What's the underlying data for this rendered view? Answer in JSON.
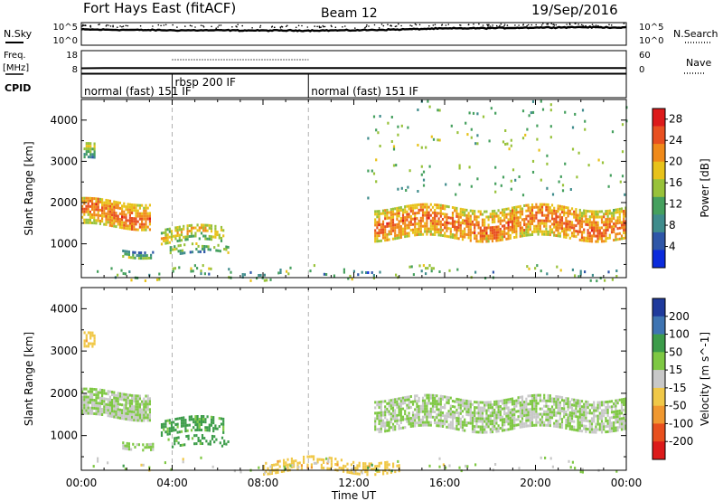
{
  "header": {
    "radar": "Fort Hays East (fitACF)",
    "beam": "Beam 12",
    "date": "19/Sep/2016"
  },
  "labels": {
    "nsky": "N.Sky",
    "nsearch": "N.Search",
    "freq_line1": "Freq.",
    "freq_line2": "[MHz]",
    "nave": "Nave",
    "cpid": "CPID",
    "ticks_noise": [
      "10^5",
      "10^0"
    ],
    "ticks_freq_left": [
      "18",
      "8"
    ],
    "ticks_freq_right": [
      "60",
      "0"
    ]
  },
  "cpid_segments": [
    {
      "label": "normal (fast) 151 IF",
      "start": 0.0
    },
    {
      "label": "rbsp 200 IF",
      "start": 4.0
    },
    {
      "label": "normal (fast) 151 IF",
      "start": 10.0
    }
  ],
  "colors": {
    "power": [
      "#0b2bdc",
      "#2e56a8",
      "#3f8c8c",
      "#45a05e",
      "#98c23a",
      "#e8c21a",
      "#f08a1a",
      "#e85020",
      "#dc1a1a"
    ],
    "velocity": [
      "#1f3a9c",
      "#3e74b2",
      "#3c9c4a",
      "#7ec843",
      "#c8c8c8",
      "#f0c848",
      "#f09830",
      "#e8501e",
      "#dc1a1a"
    ],
    "velocity_dominant": "#c0c0bc",
    "velocity_green": "#7ec843",
    "velocity_orange": "#e8a030"
  },
  "chart_data": [
    {
      "type": "line",
      "title": "N.Sky / N.Search",
      "ylabel": "N.Sky",
      "y2label": "N.Search",
      "ylim": [
        1,
        100000
      ],
      "yscale": "log",
      "xlim": [
        0,
        24
      ],
      "series": [
        {
          "name": "N.Sky",
          "x": [
            0,
            2,
            4,
            6,
            8,
            10,
            12,
            14,
            16,
            18,
            20,
            22,
            24
          ],
          "y": [
            3000,
            2500,
            2000,
            2000,
            1800,
            1800,
            2000,
            3000,
            5000,
            6000,
            8000,
            10000,
            8000
          ]
        },
        {
          "name": "N.Search",
          "x": [
            0,
            4,
            8,
            12,
            16,
            20,
            24
          ],
          "y": [
            20000,
            15000,
            12000,
            15000,
            30000,
            40000,
            30000
          ]
        }
      ]
    },
    {
      "type": "line",
      "title": "Freq. / Nave",
      "ylabel": "Freq. [MHz]",
      "y2label": "Nave",
      "ylim": [
        8,
        18
      ],
      "y2lim": [
        0,
        60
      ],
      "xlim": [
        0,
        24
      ],
      "series": [
        {
          "name": "Freq.",
          "x": [
            0,
            1,
            4,
            8,
            10,
            12,
            16,
            20,
            24
          ],
          "y": [
            10.2,
            10.3,
            10.3,
            10.3,
            10.3,
            10.3,
            10.3,
            10.3,
            10.3
          ]
        },
        {
          "name": "Nave",
          "x": [
            4,
            8,
            10
          ],
          "y": [
            36,
            36,
            36
          ]
        }
      ]
    },
    {
      "type": "heatmap",
      "title": "Power",
      "xlabel": "",
      "ylabel": "Slant Range [km]",
      "colorbar_label": "Power [dB]",
      "colorbar_ticks": [
        4,
        8,
        12,
        16,
        20,
        24,
        28
      ],
      "colorbar_range": [
        0,
        30
      ],
      "xlim": [
        0,
        24
      ],
      "ylim": [
        180,
        4500
      ],
      "yticks": [
        1000,
        2000,
        3000,
        4000
      ],
      "regions": [
        {
          "t0": 0.0,
          "t1": 3.0,
          "r_low": 1450,
          "r_high": 2050,
          "density": 0.85,
          "p_mean": 18,
          "p_spread": 6
        },
        {
          "t0": 0.1,
          "t1": 0.6,
          "r_low": 3050,
          "r_high": 3380,
          "density": 0.7,
          "p_mean": 11,
          "p_spread": 4
        },
        {
          "t0": 1.8,
          "t1": 3.2,
          "r_low": 720,
          "r_high": 900,
          "density": 0.65,
          "p_mean": 11,
          "p_spread": 4
        },
        {
          "t0": 3.5,
          "t1": 6.3,
          "r_low": 1050,
          "r_high": 1400,
          "density": 0.6,
          "p_mean": 14,
          "p_spread": 5
        },
        {
          "t0": 3.8,
          "t1": 6.5,
          "r_low": 750,
          "r_high": 950,
          "density": 0.35,
          "p_mean": 11,
          "p_spread": 4
        },
        {
          "t0": 12.9,
          "t1": 24.0,
          "r_low": 1150,
          "r_high": 1900,
          "density": 0.75,
          "p_mean": 18,
          "p_spread": 6
        },
        {
          "t0": 0.5,
          "t1": 24.0,
          "r_low": 180,
          "r_high": 420,
          "density": 0.1,
          "p_mean": 10,
          "p_spread": 6
        },
        {
          "t0": 12.5,
          "t1": 24.0,
          "r_low": 2100,
          "r_high": 4400,
          "density": 0.025,
          "p_mean": 10,
          "p_spread": 6
        }
      ]
    },
    {
      "type": "heatmap",
      "title": "Velocity",
      "xlabel": "Time UT",
      "ylabel": "Slant Range [km]",
      "colorbar_label": "Velocity [m s^-1]",
      "colorbar_ticks": [
        200,
        100,
        50,
        15,
        -15,
        -50,
        -100,
        -200
      ],
      "colorbar_range": [
        -250,
        250
      ],
      "xlim": [
        0,
        24
      ],
      "ylim": [
        180,
        4500
      ],
      "yticks": [
        1000,
        2000,
        3000,
        4000
      ],
      "xtick_labels": [
        "00:00",
        "04:00",
        "08:00",
        "12:00",
        "16:00",
        "20:00",
        "00:00"
      ],
      "regions": [
        {
          "t0": 0.0,
          "t1": 3.0,
          "r_low": 1450,
          "r_high": 2050,
          "density": 0.85,
          "v_mean": 0,
          "v_spread": 20
        },
        {
          "t0": 0.1,
          "t1": 0.6,
          "r_low": 3050,
          "r_high": 3380,
          "density": 0.7,
          "v_mean": -60,
          "v_spread": 20
        },
        {
          "t0": 1.8,
          "t1": 3.2,
          "r_low": 720,
          "r_high": 900,
          "density": 0.65,
          "v_mean": 0,
          "v_spread": 20
        },
        {
          "t0": 3.5,
          "t1": 6.3,
          "r_low": 1050,
          "r_high": 1400,
          "density": 0.6,
          "v_mean": 40,
          "v_spread": 20
        },
        {
          "t0": 3.8,
          "t1": 6.5,
          "r_low": 750,
          "r_high": 950,
          "density": 0.35,
          "v_mean": 40,
          "v_spread": 20
        },
        {
          "t0": 12.9,
          "t1": 24.0,
          "r_low": 1150,
          "r_high": 1900,
          "density": 0.75,
          "v_mean": 0,
          "v_spread": 15
        },
        {
          "t0": 8.0,
          "t1": 14.0,
          "r_low": 180,
          "r_high": 450,
          "density": 0.45,
          "v_mean": -60,
          "v_spread": 25
        },
        {
          "t0": 0.5,
          "t1": 24.0,
          "r_low": 180,
          "r_high": 420,
          "density": 0.06,
          "v_mean": 0,
          "v_spread": 60
        }
      ]
    }
  ]
}
